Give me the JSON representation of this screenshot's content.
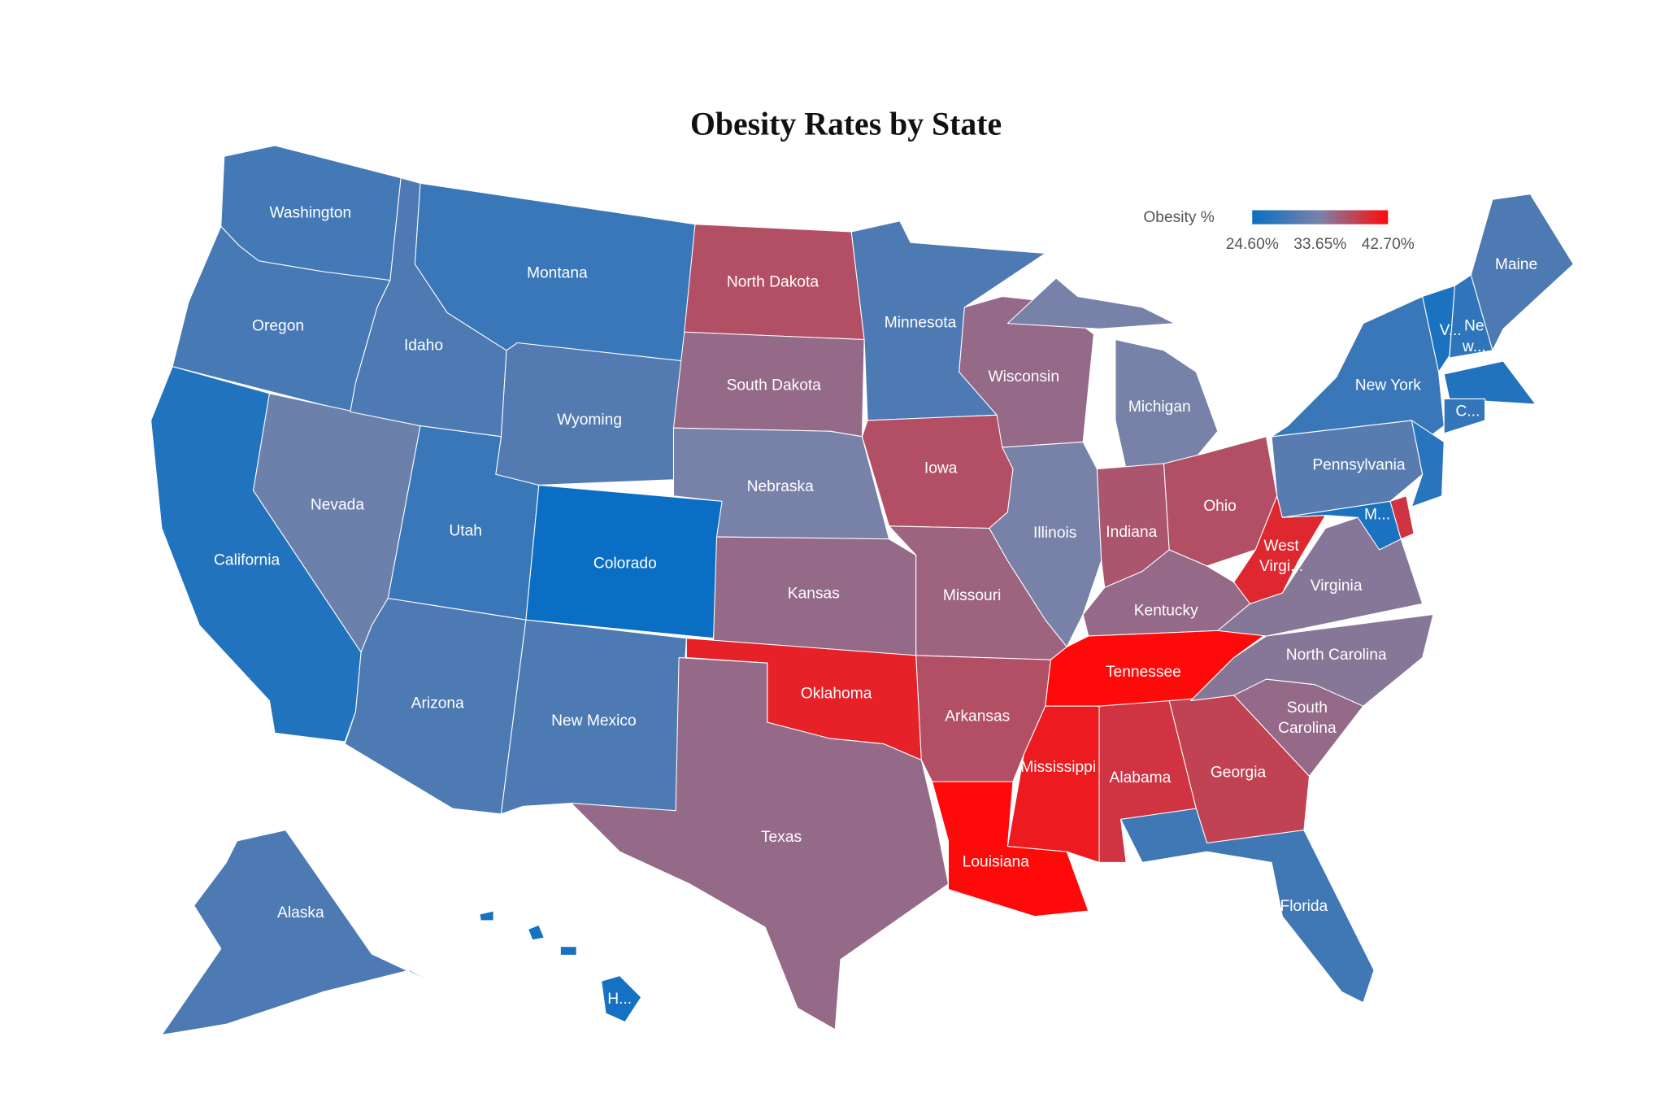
{
  "title": "Obesity Rates by State",
  "legend": {
    "title": "Obesity %",
    "ticks": [
      {
        "value": 24.6,
        "label": "24.60%"
      },
      {
        "value": 33.65,
        "label": "33.65%"
      },
      {
        "value": 42.7,
        "label": "42.70%"
      }
    ],
    "colors": [
      "#0a6fc4",
      "#7a82a8",
      "#ff0a0a"
    ]
  },
  "states": [
    {
      "name": "Washington",
      "value": 29.2
    },
    {
      "name": "Oregon",
      "value": 29.5
    },
    {
      "name": "California",
      "value": 26.5
    },
    {
      "name": "Nevada",
      "value": 32.5
    },
    {
      "name": "Idaho",
      "value": 30
    },
    {
      "name": "Montana",
      "value": 28.5
    },
    {
      "name": "Wyoming",
      "value": 30.5
    },
    {
      "name": "Utah",
      "value": 28.5
    },
    {
      "name": "Colorado",
      "value": 24.6
    },
    {
      "name": "Arizona",
      "value": 30
    },
    {
      "name": "New Mexico",
      "value": 30
    },
    {
      "name": "North Dakota",
      "value": 37.5
    },
    {
      "name": "South Dakota",
      "value": 35.5
    },
    {
      "name": "Nebraska",
      "value": 33.5
    },
    {
      "name": "Kansas",
      "value": 35.5
    },
    {
      "name": "Oklahoma",
      "value": 41
    },
    {
      "name": "Texas",
      "value": 35.5
    },
    {
      "name": "Minnesota",
      "value": 30
    },
    {
      "name": "Iowa",
      "value": 37.5
    },
    {
      "name": "Missouri",
      "value": 36
    },
    {
      "name": "Arkansas",
      "value": 37.5
    },
    {
      "name": "Louisiana",
      "value": 42.7
    },
    {
      "name": "Wisconsin",
      "value": 35.5
    },
    {
      "name": "Illinois",
      "value": 33.5
    },
    {
      "name": "Michigan",
      "value": 33.5
    },
    {
      "name": "Indiana",
      "value": 37
    },
    {
      "name": "Ohio",
      "value": 37.5
    },
    {
      "name": "Kentucky",
      "value": 35.5
    },
    {
      "name": "Tennessee",
      "value": 42.7
    },
    {
      "name": "Mississippi",
      "value": 41.5
    },
    {
      "name": "Alabama",
      "value": 39.5
    },
    {
      "name": "Georgia",
      "value": 38.5
    },
    {
      "name": "Florida",
      "value": 29
    },
    {
      "name": "South Carolina",
      "value": 35.5
    },
    {
      "name": "North Carolina",
      "value": 34.5
    },
    {
      "name": "Virginia",
      "value": 34.5
    },
    {
      "name": "West Virgi...",
      "value": 40.5
    },
    {
      "name": "Pennsylvania",
      "value": 31
    },
    {
      "name": "New York",
      "value": 28.5
    },
    {
      "name": null,
      "value": 27
    },
    {
      "name": null,
      "value": 39.5
    },
    {
      "name": "M...",
      "value": 26
    },
    {
      "name": "V...",
      "value": 26
    },
    {
      "name": "Ne w...",
      "value": 27.5
    },
    {
      "name": "Maine",
      "value": 30
    },
    {
      "name": null,
      "value": 26.5
    },
    {
      "name": "C...",
      "value": 28
    },
    {
      "name": "Alaska",
      "value": 30
    },
    {
      "name": "H...",
      "value": 25.5
    }
  ]
}
